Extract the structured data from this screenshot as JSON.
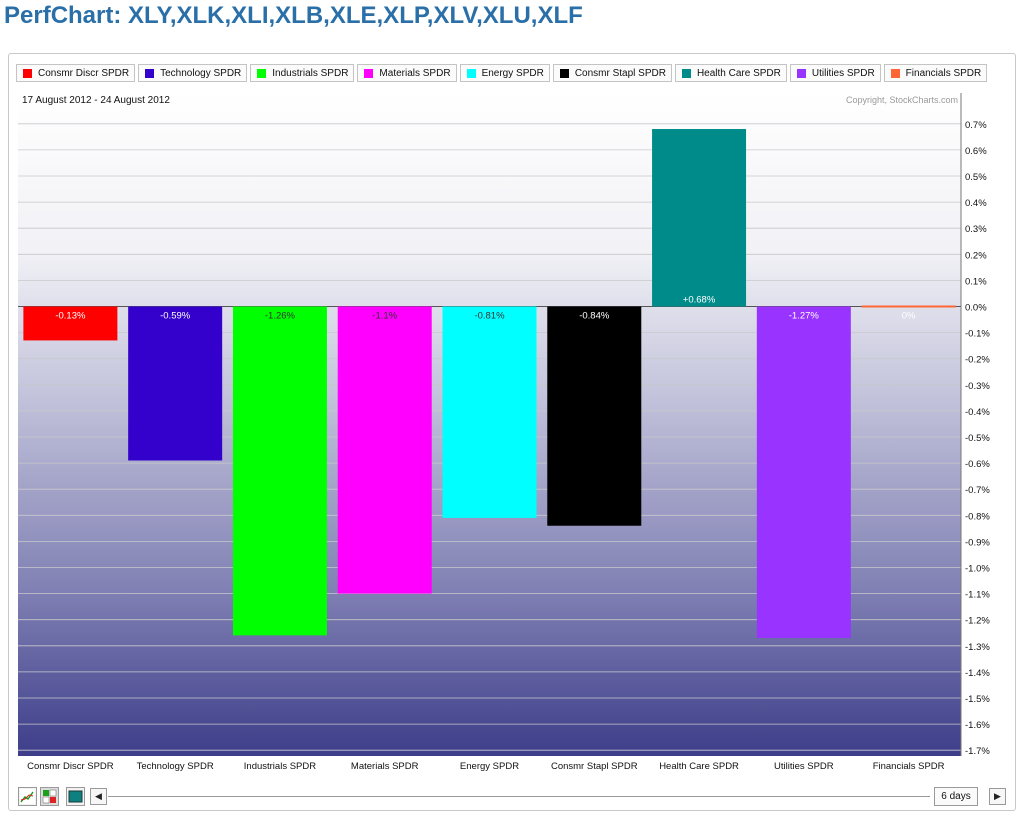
{
  "page": {
    "title": "PerfChart: XLY,XLK,XLI,XLB,XLE,XLP,XLV,XLU,XLF"
  },
  "chart_data": {
    "type": "bar",
    "title": "",
    "subtitle": "17 August 2012 - 24 August 2012",
    "copyright": "Copyright, StockCharts.com",
    "xlabel": "",
    "ylabel": "",
    "ylim": [
      -1.75,
      0.75
    ],
    "grid": true,
    "legend_position": "top",
    "y_ticks": [
      "0.7%",
      "0.6%",
      "0.5%",
      "0.4%",
      "0.3%",
      "0.2%",
      "0.1%",
      "0.0%",
      "-0.1%",
      "-0.2%",
      "-0.3%",
      "-0.4%",
      "-0.5%",
      "-0.6%",
      "-0.7%",
      "-0.8%",
      "-0.9%",
      "-1.0%",
      "-1.1%",
      "-1.2%",
      "-1.3%",
      "-1.4%",
      "-1.5%",
      "-1.6%",
      "-1.7%"
    ],
    "categories": [
      "Consmr Discr SPDR",
      "Technology SPDR",
      "Industrials SPDR",
      "Materials SPDR",
      "Energy SPDR",
      "Consmr Stapl SPDR",
      "Health Care SPDR",
      "Utilities SPDR",
      "Financials SPDR"
    ],
    "values": [
      -0.13,
      -0.59,
      -1.26,
      -1.1,
      -0.81,
      -0.84,
      0.68,
      -1.27,
      0
    ],
    "value_labels": [
      "-0.13%",
      "-0.59%",
      "-1.26%",
      "-1.1%",
      "-0.81%",
      "-0.84%",
      "+0.68%",
      "-1.27%",
      "0%"
    ],
    "colors": [
      "#ff0000",
      "#3300cc",
      "#00ff00",
      "#ff00ff",
      "#00ffff",
      "#000000",
      "#008b8b",
      "#9933ff",
      "#ff6633"
    ]
  },
  "legend": [
    {
      "label": "Consmr Discr SPDR",
      "color": "#ff0000"
    },
    {
      "label": "Technology SPDR",
      "color": "#3300cc"
    },
    {
      "label": "Industrials SPDR",
      "color": "#00ff00"
    },
    {
      "label": "Materials SPDR",
      "color": "#ff00ff"
    },
    {
      "label": "Energy SPDR",
      "color": "#00ffff"
    },
    {
      "label": "Consmr Stapl SPDR",
      "color": "#000000"
    },
    {
      "label": "Health Care SPDR",
      "color": "#008b8b"
    },
    {
      "label": "Utilities SPDR",
      "color": "#9933ff"
    },
    {
      "label": "Financials SPDR",
      "color": "#ff6633"
    }
  ],
  "toolbar": {
    "line_icon": "line-chart-icon",
    "bar_toggle_icon": "bar-chart-toggle-icon",
    "histogram_icon": "histogram-icon",
    "left_arrow": "◀",
    "right_arrow": "▶",
    "period_label": "6 days"
  }
}
